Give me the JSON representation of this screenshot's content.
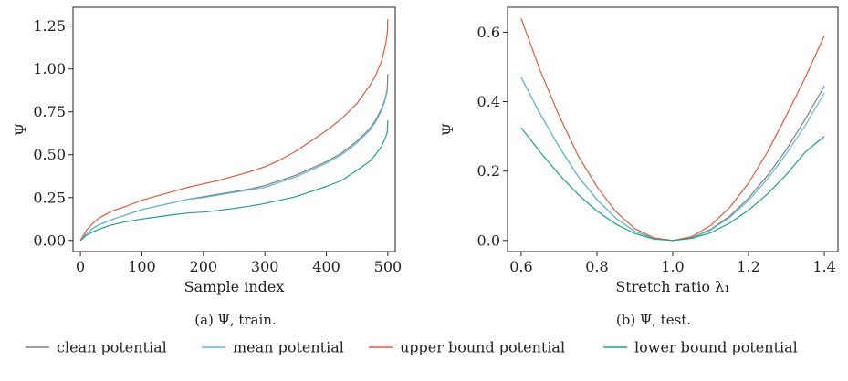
{
  "colors": {
    "clean": "#7f7f7f",
    "mean": "#5bbcd6",
    "upper": "#e45a3f",
    "lower": "#19a38f",
    "axis": "#222222"
  },
  "legend": {
    "clean": "clean potential",
    "mean": "mean potential",
    "upper": "upper bound potential",
    "lower": "lower bound potential"
  },
  "chart_data": [
    {
      "type": "line",
      "caption": "(a) Ψ, train.",
      "xlabel": "Sample index",
      "ylabel": "Ψ",
      "xlim": [
        -12,
        512
      ],
      "ylim": [
        -0.065,
        1.36
      ],
      "xticks": [
        0,
        100,
        200,
        300,
        400,
        500
      ],
      "yticks": [
        0.0,
        0.25,
        0.5,
        0.75,
        1.0,
        1.25
      ],
      "ytick_labels": [
        "0.00",
        "0.25",
        "0.50",
        "0.75",
        "1.00",
        "1.25"
      ],
      "grid": false,
      "x": [
        0,
        5,
        10,
        20,
        30,
        50,
        75,
        100,
        125,
        150,
        175,
        200,
        225,
        250,
        275,
        300,
        325,
        350,
        375,
        400,
        425,
        450,
        470,
        480,
        490,
        495,
        497,
        499,
        500
      ],
      "series": [
        {
          "key": "clean",
          "values": [
            0.0,
            0.02,
            0.04,
            0.07,
            0.09,
            0.12,
            0.15,
            0.18,
            0.2,
            0.22,
            0.24,
            0.255,
            0.27,
            0.285,
            0.3,
            0.32,
            0.35,
            0.38,
            0.42,
            0.46,
            0.51,
            0.58,
            0.65,
            0.7,
            0.77,
            0.82,
            0.85,
            0.88,
            0.97
          ]
        },
        {
          "key": "mean",
          "values": [
            0.0,
            0.02,
            0.04,
            0.07,
            0.09,
            0.12,
            0.15,
            0.18,
            0.2,
            0.22,
            0.24,
            0.25,
            0.265,
            0.28,
            0.295,
            0.31,
            0.34,
            0.37,
            0.41,
            0.45,
            0.5,
            0.57,
            0.64,
            0.69,
            0.76,
            0.81,
            0.84,
            0.87,
            0.87
          ]
        },
        {
          "key": "upper",
          "values": [
            0.0,
            0.03,
            0.06,
            0.1,
            0.13,
            0.17,
            0.2,
            0.235,
            0.26,
            0.285,
            0.31,
            0.33,
            0.35,
            0.375,
            0.4,
            0.43,
            0.47,
            0.52,
            0.58,
            0.64,
            0.71,
            0.8,
            0.9,
            0.96,
            1.05,
            1.12,
            1.16,
            1.2,
            1.29
          ]
        },
        {
          "key": "lower",
          "values": [
            0.0,
            0.015,
            0.03,
            0.05,
            0.065,
            0.09,
            0.11,
            0.125,
            0.137,
            0.15,
            0.16,
            0.165,
            0.175,
            0.187,
            0.2,
            0.215,
            0.235,
            0.255,
            0.285,
            0.315,
            0.35,
            0.41,
            0.46,
            0.5,
            0.55,
            0.59,
            0.61,
            0.63,
            0.7
          ]
        }
      ]
    },
    {
      "type": "line",
      "caption": "(b) Ψ, test.",
      "xlabel": "Stretch ratio λ₁",
      "ylabel": "Ψ",
      "xlim": [
        0.564,
        1.436
      ],
      "ylim": [
        -0.032,
        0.672
      ],
      "xticks": [
        0.6,
        0.8,
        1.0,
        1.2,
        1.4
      ],
      "xtick_labels": [
        "0.6",
        "0.8",
        "1.0",
        "1.2",
        "1.4"
      ],
      "yticks": [
        0.0,
        0.2,
        0.4,
        0.6
      ],
      "ytick_labels": [
        "0.0",
        "0.2",
        "0.4",
        "0.6"
      ],
      "grid": false,
      "x": [
        0.6,
        0.65,
        0.7,
        0.75,
        0.8,
        0.85,
        0.9,
        0.95,
        1.0,
        1.05,
        1.1,
        1.15,
        1.2,
        1.25,
        1.3,
        1.35,
        1.4
      ],
      "series": [
        {
          "key": "clean",
          "values": [
            0.47,
            0.365,
            0.27,
            0.185,
            0.118,
            0.064,
            0.026,
            0.006,
            0.0,
            0.008,
            0.032,
            0.07,
            0.122,
            0.187,
            0.262,
            0.35,
            0.445
          ]
        },
        {
          "key": "mean",
          "values": [
            0.47,
            0.365,
            0.27,
            0.185,
            0.118,
            0.064,
            0.026,
            0.006,
            0.0,
            0.007,
            0.03,
            0.066,
            0.115,
            0.177,
            0.25,
            0.332,
            0.425
          ]
        },
        {
          "key": "upper",
          "values": [
            0.64,
            0.49,
            0.36,
            0.245,
            0.155,
            0.083,
            0.034,
            0.008,
            0.0,
            0.011,
            0.043,
            0.095,
            0.165,
            0.255,
            0.36,
            0.47,
            0.59
          ]
        },
        {
          "key": "lower",
          "values": [
            0.325,
            0.255,
            0.19,
            0.133,
            0.085,
            0.047,
            0.02,
            0.004,
            0.0,
            0.006,
            0.022,
            0.05,
            0.087,
            0.134,
            0.19,
            0.255,
            0.3
          ]
        }
      ]
    }
  ]
}
